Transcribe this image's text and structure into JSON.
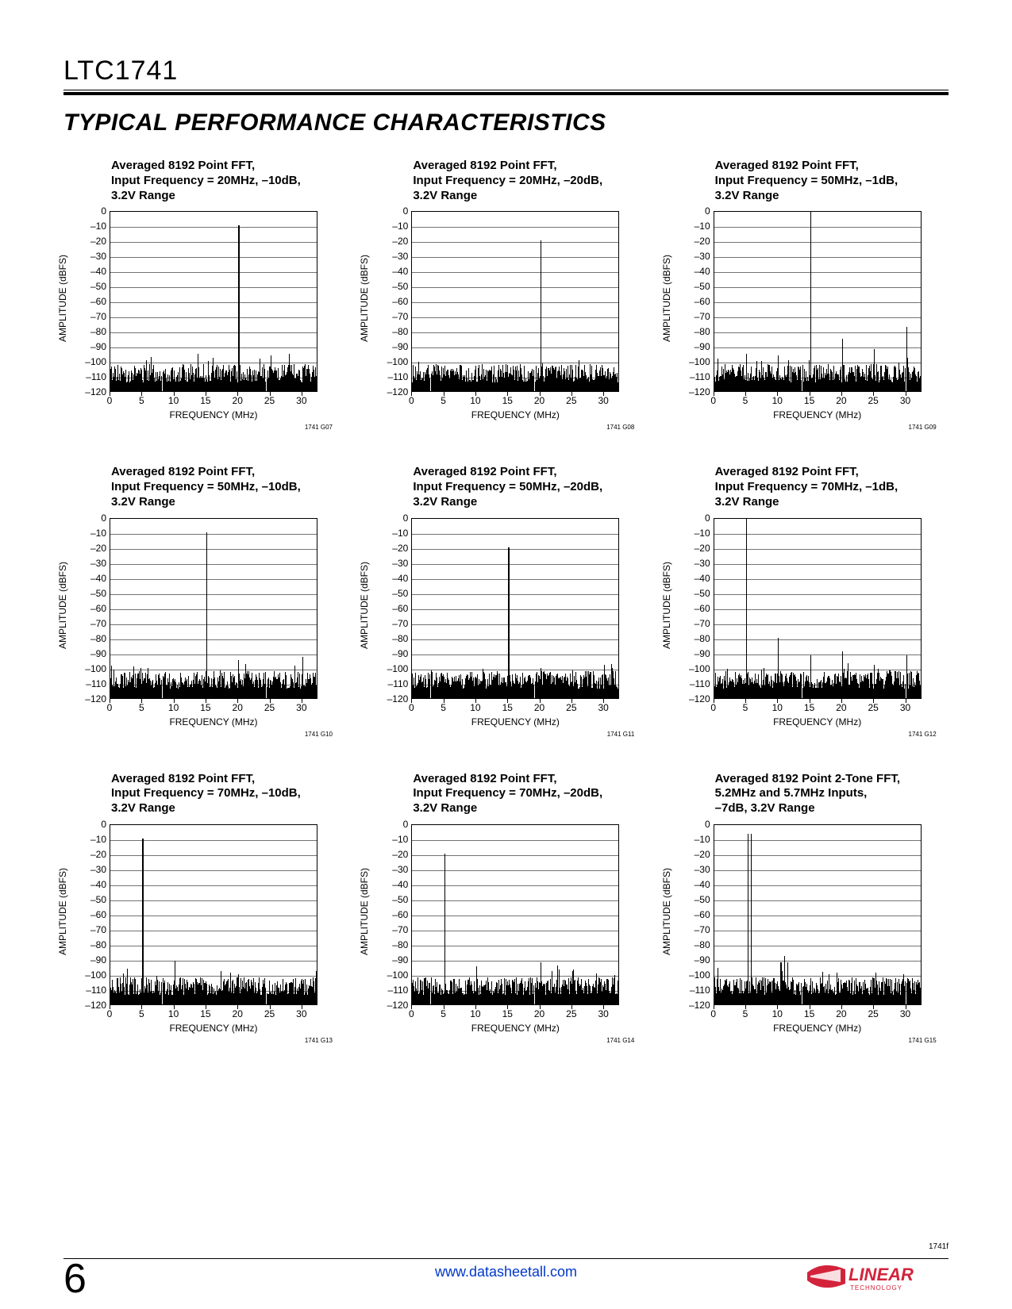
{
  "page": {
    "part_number": "LTC1741",
    "section_title": "TYPICAL PERFORMANCE CHARACTERISTICS",
    "page_number": "6",
    "footer_link": "www.datasheetall.com",
    "page_code": "1741f",
    "logo_text_main": "LINEAR",
    "logo_text_sub": "TECHNOLOGY"
  },
  "axis": {
    "ylabel": "AMPLITUDE (dBFS)",
    "xlabel": "FREQUENCY (MHz)",
    "ymin": -120,
    "ymax": 0,
    "ytick_step": 10,
    "xmin": 0,
    "xmax": 32.5,
    "xticks": [
      0,
      5,
      10,
      15,
      20,
      25,
      30
    ],
    "grid_color": "#000000",
    "noise_floor_db": -108,
    "noise_jitter_db": 6,
    "label_fontsize": 12,
    "title_fontsize": 15
  },
  "charts": [
    {
      "title": "Averaged 8192 Point FFT,\nInput Frequency = 20MHz, –10dB,\n3.2V Range",
      "code": "1741 G07",
      "peaks": [
        {
          "freq": 20,
          "db": -10
        },
        {
          "freq": 25,
          "db": -96
        }
      ]
    },
    {
      "title": "Averaged 8192 Point FFT,\nInput Frequency = 20MHz, –20dB,\n3.2V Range",
      "code": "1741 G08",
      "peaks": [
        {
          "freq": 20,
          "db": -20
        }
      ]
    },
    {
      "title": "Averaged 8192 Point FFT,\nInput Frequency = 50MHz, –1dB,\n3.2V Range",
      "code": "1741 G09",
      "peaks": [
        {
          "freq": 15,
          "db": -1
        },
        {
          "freq": 30,
          "db": -77
        },
        {
          "freq": 20,
          "db": -85
        },
        {
          "freq": 5,
          "db": -95
        },
        {
          "freq": 25,
          "db": -92
        },
        {
          "freq": 10,
          "db": -96
        }
      ]
    },
    {
      "title": "Averaged 8192 Point FFT,\nInput Frequency = 50MHz, –10dB,\n3.2V Range",
      "code": "1741 G10",
      "peaks": [
        {
          "freq": 15,
          "db": -10
        },
        {
          "freq": 30,
          "db": -93
        },
        {
          "freq": 20,
          "db": -95
        }
      ]
    },
    {
      "title": "Averaged 8192 Point FFT,\nInput Frequency = 50MHz, –20dB,\n3.2V Range",
      "code": "1741 G11",
      "peaks": [
        {
          "freq": 15,
          "db": -20
        },
        {
          "freq": 30,
          "db": -98
        },
        {
          "freq": 20,
          "db": -100
        }
      ]
    },
    {
      "title": "Averaged 8192 Point FFT,\nInput Frequency = 70MHz, –1dB,\n3.2V Range",
      "code": "1741 G12",
      "peaks": [
        {
          "freq": 5,
          "db": -1
        },
        {
          "freq": 10,
          "db": -80
        },
        {
          "freq": 15,
          "db": -92
        },
        {
          "freq": 20,
          "db": -89
        },
        {
          "freq": 25,
          "db": -98
        },
        {
          "freq": 30,
          "db": -92
        }
      ]
    },
    {
      "title": "Averaged 8192 Point FFT,\nInput Frequency = 70MHz, –10dB,\n3.2V Range",
      "code": "1741 G13",
      "peaks": [
        {
          "freq": 5,
          "db": -10
        },
        {
          "freq": 10,
          "db": -91
        },
        {
          "freq": 20,
          "db": -100
        }
      ]
    },
    {
      "title": "Averaged 8192 Point FFT,\nInput Frequency = 70MHz, –20dB,\n3.2V Range",
      "code": "1741 G14",
      "peaks": [
        {
          "freq": 5,
          "db": -20
        },
        {
          "freq": 10,
          "db": -95
        },
        {
          "freq": 20,
          "db": -92
        },
        {
          "freq": 25,
          "db": -98
        }
      ]
    },
    {
      "title": "Averaged 8192 Point 2-Tone FFT,\n5.2MHz and 5.7MHz Inputs,\n–7dB, 3.2V Range",
      "code": "1741 G15",
      "peaks": [
        {
          "freq": 5.2,
          "db": -7
        },
        {
          "freq": 5.7,
          "db": -7
        },
        {
          "freq": 10.4,
          "db": -92
        },
        {
          "freq": 10.9,
          "db": -88
        },
        {
          "freq": 11.4,
          "db": -92
        },
        {
          "freq": 0.5,
          "db": -96
        }
      ]
    }
  ]
}
